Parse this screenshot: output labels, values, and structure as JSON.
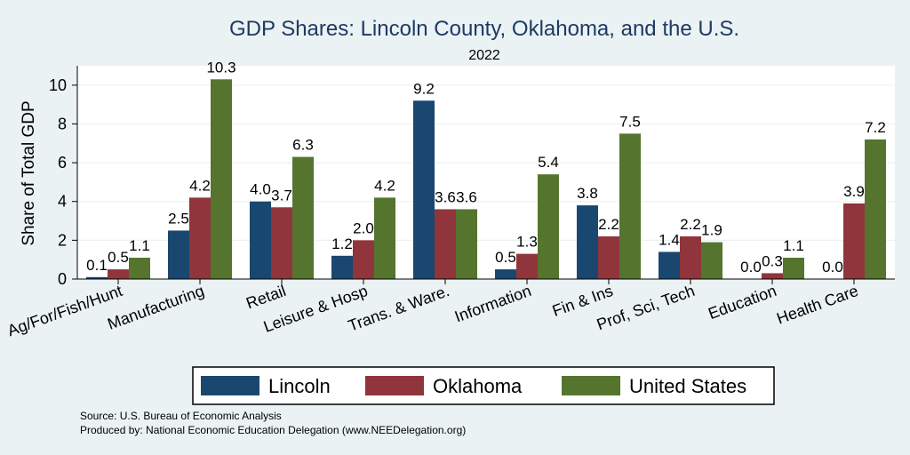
{
  "chart_data": {
    "type": "bar",
    "title": "GDP Shares: Lincoln County, Oklahoma, and the U.S.",
    "subtitle": "2022",
    "xlabel": "",
    "ylabel": "Share of Total GDP",
    "ylim": [
      0,
      11
    ],
    "yticks": [
      0,
      2,
      4,
      6,
      8,
      10
    ],
    "grid": true,
    "legend_position": "bottom",
    "categories": [
      "Ag/For/Fish/Hunt",
      "Manufacturing",
      "Retail",
      "Leisure & Hosp",
      "Trans. & Ware.",
      "Information",
      "Fin & Ins",
      "Prof, Sci, Tech",
      "Education",
      "Health Care"
    ],
    "series": [
      {
        "name": "Lincoln",
        "color": "#1a476f",
        "values": [
          0.1,
          2.5,
          4.0,
          1.2,
          9.2,
          0.5,
          3.8,
          1.4,
          0.0,
          0.0
        ],
        "labels": [
          "0.1",
          "2.5",
          "4.0",
          "1.2",
          "9.2",
          "0.5",
          "3.8",
          "1.4",
          "0.0",
          "0.0"
        ]
      },
      {
        "name": "Oklahoma",
        "color": "#90353b",
        "values": [
          0.5,
          4.2,
          3.7,
          2.0,
          3.6,
          1.3,
          2.2,
          2.2,
          0.3,
          3.9
        ],
        "labels": [
          "0.5",
          "4.2",
          "3.7",
          "2.0",
          "3.6",
          "1.3",
          "2.2",
          "2.2",
          "0.3",
          "3.9"
        ]
      },
      {
        "name": "United States",
        "color": "#55752f",
        "values": [
          1.1,
          10.3,
          6.3,
          4.2,
          3.6,
          5.4,
          7.5,
          1.9,
          1.1,
          7.2
        ],
        "labels": [
          "1.1",
          "10.3",
          "6.3",
          "4.2",
          "3.6",
          "5.4",
          "7.5",
          "1.9",
          "1.1",
          "7.2"
        ]
      }
    ]
  },
  "footer": {
    "source": "Source: U.S. Bureau of Economic Analysis",
    "produced_by": "Produced by: National Economic Education Delegation (www.NEEDelegation.org)"
  }
}
